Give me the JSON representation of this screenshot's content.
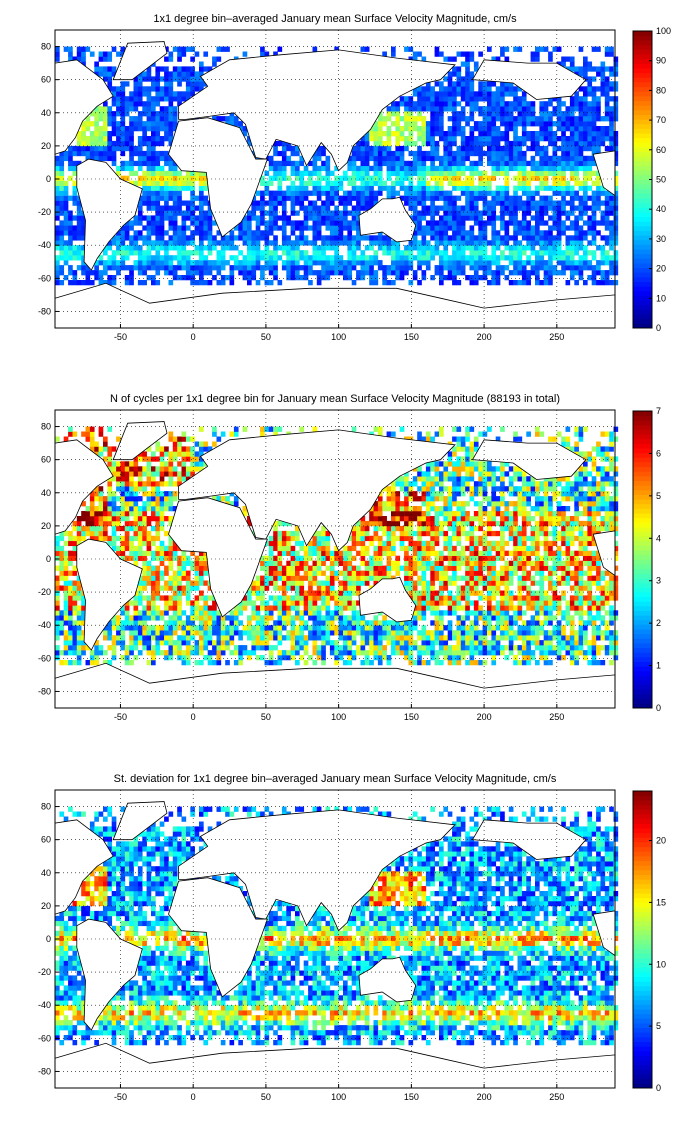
{
  "panels": [
    {
      "title": "1x1 degree bin–averaged January mean Surface Velocity Magnitude, cm/s",
      "chart_data": {
        "type": "heatmap",
        "title": "1x1 degree bin–averaged January mean Surface Velocity Magnitude, cm/s",
        "xlim": [
          -95,
          290
        ],
        "ylim": [
          -90,
          90
        ],
        "xticks": [
          -50,
          0,
          50,
          100,
          150,
          200,
          250
        ],
        "yticks": [
          80,
          60,
          40,
          20,
          0,
          -20,
          -40,
          -60,
          -80
        ],
        "grid": true,
        "colorbar": {
          "min": 0,
          "max": 100,
          "ticks": [
            0,
            10,
            20,
            30,
            40,
            50,
            60,
            70,
            80,
            90,
            100
          ]
        }
      }
    },
    {
      "title": "N of cycles per 1x1 degree bin for January mean Surface Velocity Magnitude (88193 in total)",
      "chart_data": {
        "type": "heatmap",
        "title": "N of cycles per 1x1 degree bin for January mean Surface Velocity Magnitude (88193 in total)",
        "xlim": [
          -95,
          290
        ],
        "ylim": [
          -90,
          90
        ],
        "xticks": [
          -50,
          0,
          50,
          100,
          150,
          200,
          250
        ],
        "yticks": [
          80,
          60,
          40,
          20,
          0,
          -20,
          -40,
          -60,
          -80
        ],
        "grid": true,
        "colorbar": {
          "min": 0,
          "max": 7,
          "ticks": [
            0,
            1,
            2,
            3,
            4,
            5,
            6,
            7
          ]
        }
      }
    },
    {
      "title": "St. deviation for 1x1 degree bin–averaged January mean Surface Velocity Magnitude, cm/s",
      "chart_data": {
        "type": "heatmap",
        "title": "St. deviation for 1x1 degree bin–averaged January mean Surface Velocity Magnitude, cm/s",
        "xlim": [
          -95,
          290
        ],
        "ylim": [
          -90,
          90
        ],
        "xticks": [
          -50,
          0,
          50,
          100,
          150,
          200,
          250
        ],
        "yticks": [
          80,
          60,
          40,
          20,
          0,
          -20,
          -40,
          -60,
          -80
        ],
        "grid": true,
        "colorbar": {
          "min": 0,
          "max": 24,
          "ticks": [
            0,
            5,
            10,
            15,
            20
          ]
        }
      }
    }
  ]
}
